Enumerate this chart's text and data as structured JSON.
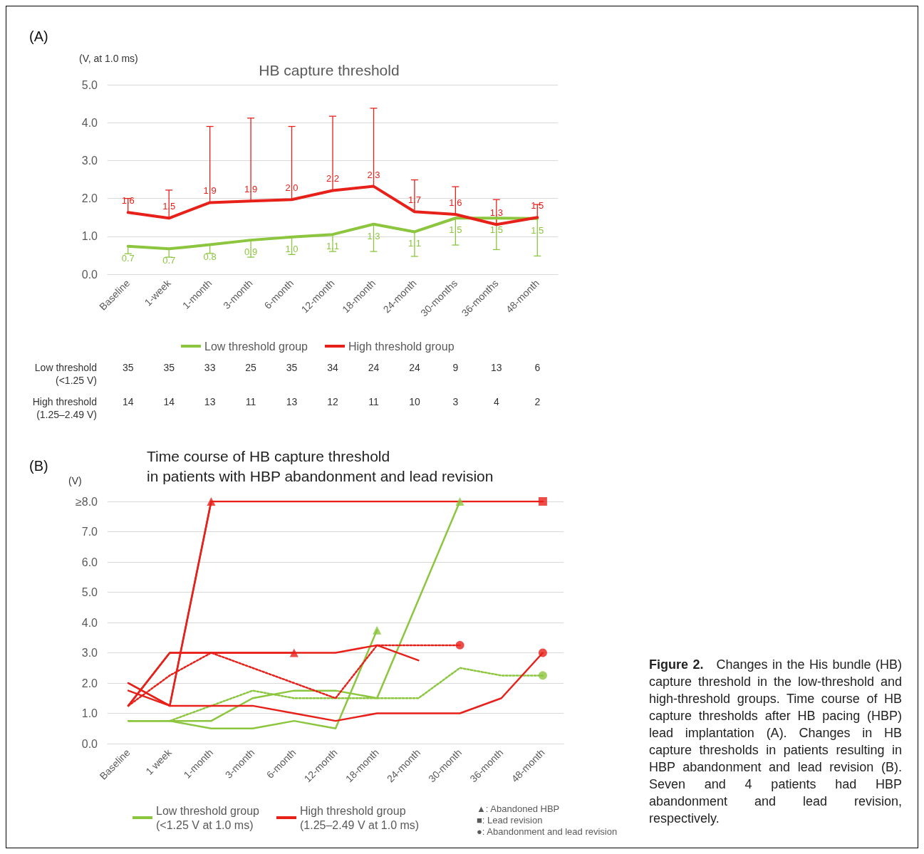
{
  "chart_data": [
    {
      "type": "line",
      "title": "HB capture threshold",
      "ylabel": "(V, at 1.0 ms)",
      "categories": [
        "Baseline",
        "1-week",
        "1-month",
        "3-month",
        "6-month",
        "12-month",
        "18-month",
        "24-month",
        "30-months",
        "36-months",
        "48-month"
      ],
      "series": [
        {
          "name": "Low threshold group",
          "color": "#8cc63f",
          "values": [
            0.74,
            0.67,
            0.78,
            0.9,
            0.98,
            1.05,
            1.32,
            1.12,
            1.48,
            1.48,
            1.47
          ],
          "value_labels": [
            "0.7",
            "0.7",
            "0.8",
            "0.9",
            "1.0",
            "1.1",
            "1.3",
            "1.1",
            "1.5",
            "1.5",
            "1.5"
          ],
          "errors": [
            [
              0.54,
              0.74
            ],
            [
              0.45,
              0.67
            ],
            [
              0.55,
              0.78
            ],
            [
              0.45,
              0.9
            ],
            [
              0.52,
              0.98
            ],
            [
              0.6,
              1.05
            ],
            [
              0.6,
              1.32
            ],
            [
              0.47,
              1.12
            ],
            [
              0.77,
              1.48
            ],
            [
              0.65,
              1.48
            ],
            [
              0.48,
              1.47
            ]
          ]
        },
        {
          "name": "High threshold group",
          "color": "#e8201a",
          "values": [
            1.63,
            1.48,
            1.89,
            1.93,
            1.97,
            2.21,
            2.32,
            1.65,
            1.58,
            1.31,
            1.5
          ],
          "value_labels": [
            "1.6",
            "1.5",
            "1.9",
            "1.9",
            "2.0",
            "2.2",
            "2.3",
            "1.7",
            "1.6",
            "1.3",
            "1.5"
          ],
          "errors": [
            [
              1.63,
              2.0
            ],
            [
              1.48,
              2.22
            ],
            [
              1.89,
              3.9
            ],
            [
              1.93,
              4.12
            ],
            [
              1.97,
              3.9
            ],
            [
              2.21,
              4.17
            ],
            [
              2.32,
              4.38
            ],
            [
              1.65,
              2.49
            ],
            [
              1.58,
              2.31
            ],
            [
              1.31,
              1.97
            ],
            [
              1.5,
              1.84
            ]
          ]
        }
      ],
      "ylim": [
        0,
        5
      ],
      "yticks": [
        {
          "value": 0,
          "label": "0.0"
        },
        {
          "value": 1,
          "label": "1.0"
        },
        {
          "value": 2,
          "label": "2.0"
        },
        {
          "value": 3,
          "label": "3.0"
        },
        {
          "value": 4,
          "label": "4.0"
        },
        {
          "value": 5,
          "label": "5.0"
        }
      ],
      "grid": "y",
      "legend": "bottom",
      "marker": "none",
      "line_style": "solid",
      "annotations": [
        "(A)",
        "Low threshold\n(<1.25 V)",
        "35",
        "35",
        "33",
        "25",
        "35",
        "34",
        "24",
        "24",
        "9",
        "13",
        "6",
        "High threshold\n(1.25–2.49 V)",
        "14",
        "14",
        "13",
        "11",
        "13",
        "12",
        "11",
        "10",
        "3",
        "4",
        "2"
      ]
    },
    {
      "type": "line",
      "title": "Time course of HB capture threshold\nin patients with HBP abandonment and lead revision",
      "ylabel": "(V)",
      "categories": [
        "Baseline",
        "1 week",
        "1-month",
        "3-month",
        "6-month",
        "12-month",
        "18-month",
        "24-month",
        "30-month",
        "36-month",
        "48-month"
      ],
      "series": [
        {
          "name": "Low threshold group\n(<1.25 V at 1.0 ms)",
          "color": "#8cc63f",
          "values": [
            0.75,
            0.75,
            0.75,
            1.5,
            1.75,
            1.75,
            1.5,
            null,
            8.0,
            null,
            null
          ],
          "line_style": "solid"
        },
        {
          "color": "#8cc63f",
          "values": [
            0.75,
            0.75,
            0.5,
            0.5,
            0.75,
            0.5,
            3.75,
            null,
            null,
            null,
            null
          ],
          "line_style": "solid"
        },
        {
          "color": "#8cc63f",
          "values": [
            null,
            0.75,
            1.25,
            1.75,
            1.5,
            1.5,
            1.5,
            1.5,
            2.5,
            2.25,
            2.25
          ],
          "line_style": "dotted"
        },
        {
          "name": "High threshold group\n(1.25–2.49 V at 1.0 ms)",
          "color": "#e8201a",
          "values": [
            1.25,
            3.0,
            3.0,
            3.0,
            3.0,
            3.0,
            3.25,
            2.75,
            null,
            null,
            null
          ],
          "line_style": "solid"
        },
        {
          "color": "#e8201a",
          "values": [
            1.25,
            3.0,
            3.0,
            3.0,
            3.0,
            null,
            null,
            null,
            null,
            null,
            null
          ],
          "line_style": "solid"
        },
        {
          "color": "#e8201a",
          "values": [
            2.0,
            1.25,
            8.0,
            null,
            null,
            null,
            null,
            null,
            null,
            null,
            null
          ],
          "line_style": "solid"
        },
        {
          "color": "#e8201a",
          "values": [
            2.0,
            1.25,
            8.0,
            8.0,
            8.0,
            8.0,
            8.0,
            8.0,
            8.0,
            8.0,
            8.0
          ],
          "line_style": "solid"
        },
        {
          "color": "#e8201a",
          "values": [
            1.75,
            1.25,
            1.25,
            1.25,
            1.0,
            0.75,
            1.0,
            1.0,
            1.0,
            1.5,
            3.0
          ],
          "line_style": "solid"
        },
        {
          "color": "#e8201a",
          "values": [
            1.25,
            2.25,
            3.0,
            2.5,
            2.0,
            1.5,
            3.25,
            3.25,
            3.25,
            null,
            null
          ],
          "line_style": "dotted"
        },
        {
          "type": "scatter",
          "color": "#e8201a",
          "x": [
            "1-month",
            "6-month"
          ],
          "values": [
            8.0,
            3.0
          ],
          "marker": "triangle"
        },
        {
          "type": "scatter",
          "color": "#8cc63f",
          "x": [
            "18-month",
            "30-month"
          ],
          "values": [
            3.75,
            8.0
          ],
          "marker": "triangle"
        },
        {
          "type": "scatter",
          "color": "#e8201a",
          "x": [
            "48-month"
          ],
          "values": [
            8.0
          ],
          "marker": "square"
        },
        {
          "type": "scatter",
          "color": "#e8201a",
          "x": [
            "30-month",
            "48-month"
          ],
          "values": [
            3.25,
            3.0
          ],
          "marker": "circle"
        },
        {
          "type": "scatter",
          "color": "#8cc63f",
          "x": [
            "48-month"
          ],
          "values": [
            2.25
          ],
          "marker": "circle"
        }
      ],
      "ylim": [
        0,
        8
      ],
      "yticks": [
        {
          "value": 0,
          "label": "0.0"
        },
        {
          "value": 1,
          "label": "1.0"
        },
        {
          "value": 2,
          "label": "2.0"
        },
        {
          "value": 3,
          "label": "3.0"
        },
        {
          "value": 4,
          "label": "4.0"
        },
        {
          "value": 5,
          "label": "5.0"
        },
        {
          "value": 6,
          "label": "6.0"
        },
        {
          "value": 7,
          "label": "7.0"
        },
        {
          "value": 8,
          "label": "≥8.0"
        }
      ],
      "grid": "y",
      "legend": "bottom",
      "annotations": [
        "(B)",
        "▲: Abandoned HBP",
        "■: Lead revision",
        "●: Abandonment and lead revision",
        "Figure 2.",
        "Changes in the His bundle (HB) capture threshold in the low-threshold and high-threshold groups. Time course of HB capture thresholds after HB pacing (HBP) lead implantation (A). Changes in HB capture thresholds in patients resulting in HBP abandonment and lead revision (B). Seven and 4 patients had HBP abandonment and lead revision, respectively."
      ]
    }
  ]
}
